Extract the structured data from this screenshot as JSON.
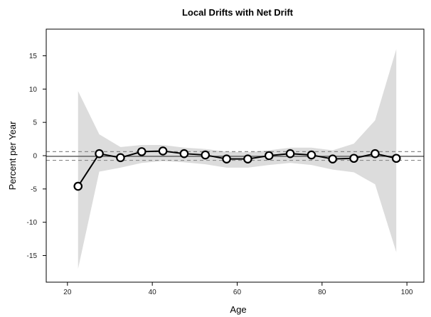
{
  "chart_data": {
    "type": "line",
    "title": "Local Drifts with Net Drift",
    "xlabel": "Age",
    "ylabel": "Percent per Year",
    "xlim": [
      15,
      104
    ],
    "ylim": [
      -19,
      19
    ],
    "x_ticks": [
      20,
      40,
      60,
      80,
      100
    ],
    "y_ticks": [
      -15,
      -10,
      -5,
      0,
      5,
      10,
      15
    ],
    "grid": false,
    "series": [
      {
        "x": [
          22.5,
          27.5,
          32.5,
          37.5,
          42.5,
          47.5,
          52.5,
          57.5,
          62.5,
          67.5,
          72.5,
          77.5,
          82.5,
          87.5,
          92.5,
          97.5
        ],
        "values": [
          -4.6,
          0.3,
          -0.3,
          0.6,
          0.7,
          0.3,
          0.1,
          -0.5,
          -0.5,
          0.0,
          0.3,
          0.1,
          -0.5,
          -0.4,
          0.3,
          -0.4
        ],
        "lower": [
          -17.0,
          -2.4,
          -1.8,
          -1.1,
          -0.8,
          -1.0,
          -1.3,
          -1.8,
          -1.8,
          -1.4,
          -1.1,
          -1.4,
          -2.1,
          -2.5,
          -4.3,
          -14.5
        ],
        "upper": [
          9.7,
          3.2,
          1.3,
          1.6,
          1.6,
          1.2,
          1.0,
          0.6,
          0.5,
          0.8,
          1.2,
          1.2,
          0.8,
          1.8,
          5.3,
          16.0
        ]
      }
    ],
    "net_drift": {
      "value": -0.1,
      "lower": -0.7,
      "upper": 0.6
    }
  },
  "colors": {
    "band": "#dcdcdc",
    "line": "#000000",
    "marker_fill": "#ffffff",
    "net_drift_line": "#555555",
    "net_drift_ci": "#888888"
  }
}
